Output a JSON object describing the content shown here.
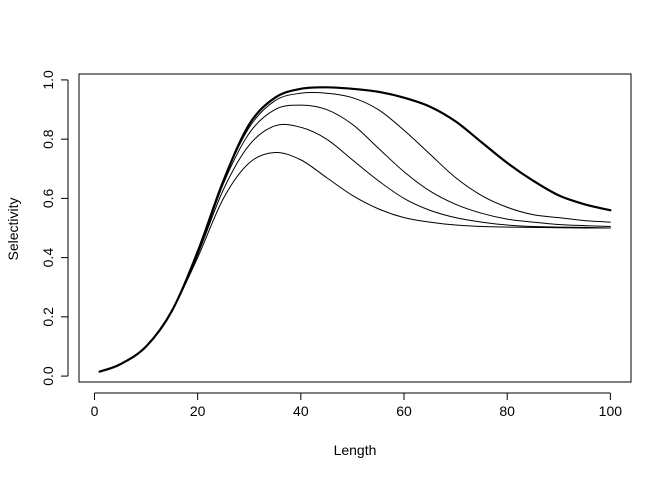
{
  "chart_data": {
    "type": "line",
    "title": "",
    "xlabel": "Length",
    "ylabel": "Selectivity",
    "xlim": [
      -3,
      104
    ],
    "ylim": [
      -0.02,
      1.02
    ],
    "x_ticks": [
      "0",
      "20",
      "40",
      "60",
      "80",
      "100"
    ],
    "y_ticks": [
      "0.0",
      "0.2",
      "0.4",
      "0.6",
      "0.8",
      "1.0"
    ],
    "grid": false,
    "legend": "none",
    "line_color": "#000000",
    "series": [
      {
        "emphasis": "bold",
        "x": [
          1,
          5,
          10,
          15,
          20,
          25,
          30,
          35,
          40,
          45,
          50,
          55,
          60,
          65,
          70,
          75,
          80,
          85,
          90,
          95,
          100
        ],
        "y": [
          0.015,
          0.04,
          0.1,
          0.22,
          0.42,
          0.66,
          0.85,
          0.94,
          0.97,
          0.975,
          0.97,
          0.96,
          0.94,
          0.91,
          0.86,
          0.79,
          0.72,
          0.66,
          0.61,
          0.58,
          0.56
        ]
      },
      {
        "emphasis": "normal",
        "x": [
          1,
          5,
          10,
          15,
          20,
          25,
          30,
          35,
          40,
          45,
          50,
          55,
          60,
          65,
          70,
          75,
          80,
          85,
          90,
          95,
          100
        ],
        "y": [
          0.015,
          0.04,
          0.1,
          0.22,
          0.42,
          0.66,
          0.84,
          0.93,
          0.955,
          0.955,
          0.94,
          0.9,
          0.83,
          0.75,
          0.67,
          0.61,
          0.57,
          0.545,
          0.535,
          0.525,
          0.52
        ]
      },
      {
        "emphasis": "normal",
        "x": [
          1,
          5,
          10,
          15,
          20,
          25,
          30,
          35,
          40,
          45,
          50,
          55,
          60,
          65,
          70,
          75,
          80,
          85,
          90,
          95,
          100
        ],
        "y": [
          0.015,
          0.04,
          0.1,
          0.22,
          0.41,
          0.65,
          0.82,
          0.9,
          0.915,
          0.9,
          0.85,
          0.77,
          0.69,
          0.625,
          0.58,
          0.55,
          0.53,
          0.52,
          0.512,
          0.508,
          0.505
        ]
      },
      {
        "emphasis": "normal",
        "x": [
          1,
          5,
          10,
          15,
          20,
          25,
          30,
          35,
          40,
          45,
          50,
          55,
          60,
          65,
          70,
          75,
          80,
          85,
          90,
          95,
          100
        ],
        "y": [
          0.015,
          0.04,
          0.1,
          0.22,
          0.41,
          0.63,
          0.78,
          0.845,
          0.84,
          0.8,
          0.73,
          0.66,
          0.6,
          0.56,
          0.535,
          0.52,
          0.51,
          0.505,
          0.503,
          0.502,
          0.5
        ]
      },
      {
        "emphasis": "normal",
        "x": [
          1,
          5,
          10,
          15,
          20,
          25,
          30,
          35,
          40,
          45,
          50,
          55,
          60,
          65,
          70,
          75,
          80,
          85,
          90,
          95,
          100
        ],
        "y": [
          0.015,
          0.04,
          0.1,
          0.22,
          0.4,
          0.6,
          0.72,
          0.755,
          0.73,
          0.67,
          0.61,
          0.565,
          0.535,
          0.52,
          0.51,
          0.505,
          0.503,
          0.502,
          0.501,
          0.5,
          0.5
        ]
      }
    ]
  }
}
